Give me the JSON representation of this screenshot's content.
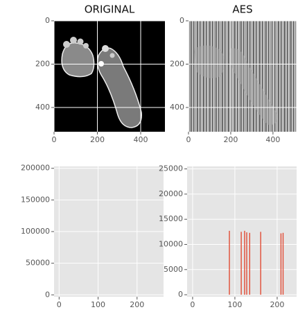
{
  "chart_data": [
    {
      "type": "image",
      "title": "ORIGINAL",
      "xlim": [
        0,
        512
      ],
      "ylim": [
        512,
        0
      ],
      "xticks": [
        0,
        200,
        400
      ],
      "yticks": [
        0,
        200,
        400
      ],
      "grid": true
    },
    {
      "type": "image",
      "title": "AES",
      "xlim": [
        0,
        512
      ],
      "ylim": [
        512,
        0
      ],
      "xticks": [
        0,
        200,
        400
      ],
      "yticks": [
        0,
        200,
        400
      ],
      "grid": true
    },
    {
      "type": "histogram",
      "xlim": [
        -13,
        268
      ],
      "ylim": [
        -3000,
        203000
      ],
      "xticks": [
        0,
        100,
        200
      ],
      "yticks": [
        0,
        50000,
        100000,
        150000,
        200000
      ],
      "grid": true,
      "color": "#e24a33",
      "x": [],
      "values": []
    },
    {
      "type": "histogram",
      "xlim": [
        -13,
        246
      ],
      "ylim": [
        -400,
        25500
      ],
      "xticks": [
        0,
        100,
        200
      ],
      "yticks": [
        0,
        5000,
        10000,
        15000,
        20000,
        25000
      ],
      "grid": true,
      "color": "#e24a33",
      "x": [
        87,
        115,
        123,
        128,
        135,
        161,
        209,
        214
      ],
      "values": [
        12700,
        12500,
        12700,
        12400,
        12300,
        12500,
        12200,
        12300
      ]
    }
  ]
}
